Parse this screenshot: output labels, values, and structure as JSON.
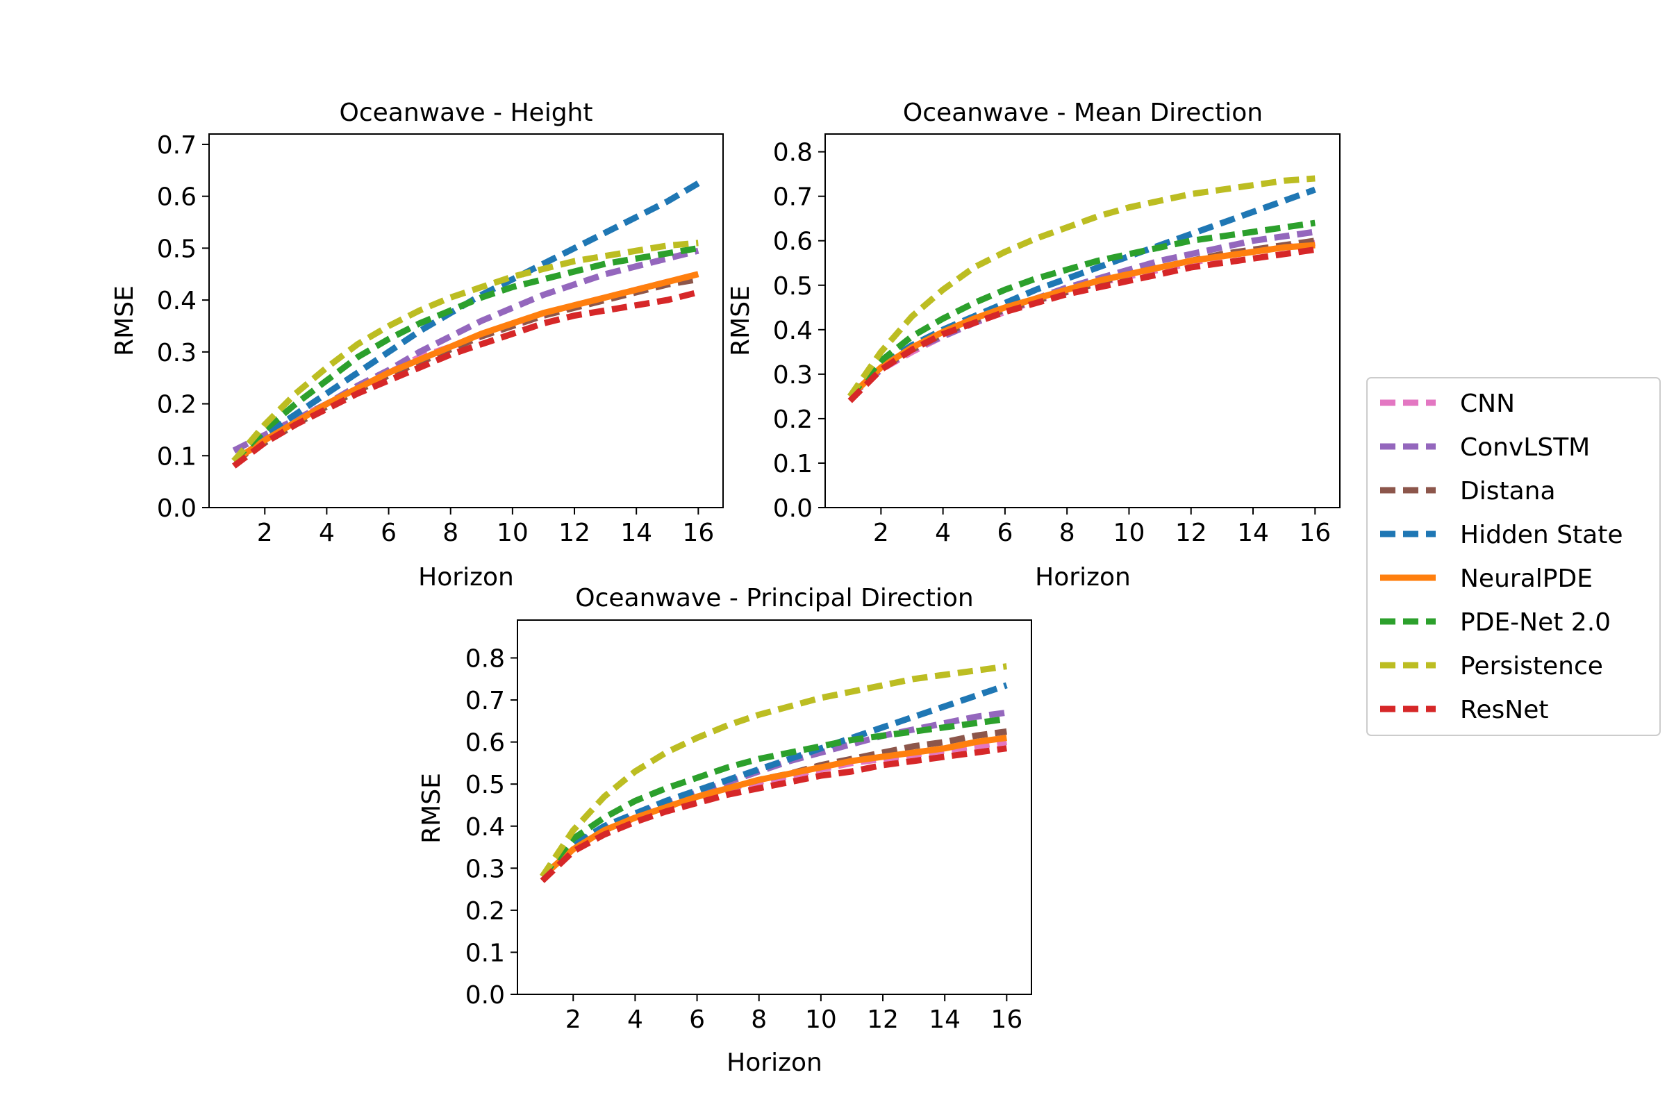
{
  "legend": {
    "placement": "center-right",
    "entries": [
      "CNN",
      "ConvLSTM",
      "Distana",
      "Hidden State",
      "NeuralPDE",
      "PDE-Net 2.0",
      "Persistence",
      "ResNet"
    ]
  },
  "styles": {
    "CNN": {
      "color": "#e377c2",
      "dash": "dashed"
    },
    "ConvLSTM": {
      "color": "#9467bd",
      "dash": "dashed"
    },
    "Distana": {
      "color": "#8c564b",
      "dash": "dashed"
    },
    "Hidden State": {
      "color": "#1f77b4",
      "dash": "dashed"
    },
    "NeuralPDE": {
      "color": "#ff7f0e",
      "dash": "solid"
    },
    "PDE-Net 2.0": {
      "color": "#2ca02c",
      "dash": "dashed"
    },
    "Persistence": {
      "color": "#bcbd22",
      "dash": "dashed"
    },
    "ResNet": {
      "color": "#d62728",
      "dash": "dashed"
    }
  },
  "chart_data": [
    {
      "type": "line",
      "title": "Oceanwave - Height",
      "xlabel": "Horizon",
      "ylabel": "RMSE",
      "xlim": [
        0.2,
        16.8
      ],
      "ylim": [
        0,
        0.72
      ],
      "xticks": [
        2,
        4,
        6,
        8,
        10,
        12,
        14,
        16
      ],
      "yticks": [
        0.0,
        0.1,
        0.2,
        0.3,
        0.4,
        0.5,
        0.6,
        0.7
      ],
      "grid": false,
      "x": [
        1,
        2,
        3,
        4,
        5,
        6,
        7,
        8,
        9,
        10,
        11,
        12,
        13,
        14,
        15,
        16
      ],
      "series": [
        {
          "name": "CNN",
          "values": [
            0.09,
            0.13,
            0.17,
            0.2,
            0.23,
            0.26,
            0.29,
            0.31,
            0.33,
            0.35,
            0.37,
            0.39,
            0.405,
            0.42,
            0.435,
            0.45
          ]
        },
        {
          "name": "ConvLSTM",
          "values": [
            0.11,
            0.14,
            0.17,
            0.2,
            0.235,
            0.265,
            0.3,
            0.33,
            0.36,
            0.385,
            0.41,
            0.43,
            0.45,
            0.465,
            0.48,
            0.495
          ]
        },
        {
          "name": "Distana",
          "values": [
            0.09,
            0.125,
            0.16,
            0.195,
            0.225,
            0.255,
            0.28,
            0.305,
            0.33,
            0.35,
            0.37,
            0.385,
            0.4,
            0.415,
            0.43,
            0.44
          ]
        },
        {
          "name": "Hidden State",
          "values": [
            0.09,
            0.14,
            0.18,
            0.22,
            0.26,
            0.3,
            0.34,
            0.375,
            0.41,
            0.44,
            0.47,
            0.5,
            0.53,
            0.56,
            0.59,
            0.625
          ]
        },
        {
          "name": "NeuralPDE",
          "values": [
            0.09,
            0.13,
            0.165,
            0.2,
            0.23,
            0.26,
            0.285,
            0.31,
            0.335,
            0.355,
            0.375,
            0.39,
            0.405,
            0.42,
            0.435,
            0.45
          ]
        },
        {
          "name": "PDE-Net 2.0",
          "values": [
            0.09,
            0.15,
            0.2,
            0.245,
            0.29,
            0.325,
            0.355,
            0.38,
            0.405,
            0.425,
            0.44,
            0.455,
            0.47,
            0.48,
            0.49,
            0.5
          ]
        },
        {
          "name": "Persistence",
          "values": [
            0.09,
            0.16,
            0.22,
            0.27,
            0.315,
            0.35,
            0.38,
            0.405,
            0.425,
            0.445,
            0.46,
            0.475,
            0.485,
            0.495,
            0.505,
            0.51
          ]
        },
        {
          "name": "ResNet",
          "values": [
            0.08,
            0.125,
            0.16,
            0.19,
            0.22,
            0.245,
            0.27,
            0.295,
            0.315,
            0.335,
            0.355,
            0.37,
            0.38,
            0.39,
            0.4,
            0.415
          ]
        }
      ]
    },
    {
      "type": "line",
      "title": "Oceanwave - Mean Direction",
      "xlabel": "Horizon",
      "ylabel": "RMSE",
      "xlim": [
        0.2,
        16.8
      ],
      "ylim": [
        0,
        0.84
      ],
      "xticks": [
        2,
        4,
        6,
        8,
        10,
        12,
        14,
        16
      ],
      "yticks": [
        0.0,
        0.1,
        0.2,
        0.3,
        0.4,
        0.5,
        0.6,
        0.7,
        0.8
      ],
      "grid": false,
      "x": [
        1,
        2,
        3,
        4,
        5,
        6,
        7,
        8,
        9,
        10,
        11,
        12,
        13,
        14,
        15,
        16
      ],
      "series": [
        {
          "name": "CNN",
          "values": [
            0.25,
            0.31,
            0.35,
            0.385,
            0.415,
            0.44,
            0.465,
            0.485,
            0.505,
            0.52,
            0.535,
            0.55,
            0.565,
            0.575,
            0.585,
            0.595
          ]
        },
        {
          "name": "ConvLSTM",
          "values": [
            0.25,
            0.31,
            0.355,
            0.385,
            0.415,
            0.445,
            0.47,
            0.495,
            0.515,
            0.535,
            0.555,
            0.57,
            0.585,
            0.6,
            0.61,
            0.62
          ]
        },
        {
          "name": "Distana",
          "values": [
            0.25,
            0.315,
            0.355,
            0.39,
            0.42,
            0.445,
            0.465,
            0.485,
            0.505,
            0.525,
            0.54,
            0.555,
            0.57,
            0.58,
            0.59,
            0.6
          ]
        },
        {
          "name": "Hidden State",
          "values": [
            0.25,
            0.32,
            0.365,
            0.4,
            0.43,
            0.46,
            0.49,
            0.515,
            0.54,
            0.565,
            0.59,
            0.615,
            0.64,
            0.665,
            0.69,
            0.715
          ]
        },
        {
          "name": "NeuralPDE",
          "values": [
            0.25,
            0.315,
            0.36,
            0.395,
            0.425,
            0.45,
            0.47,
            0.49,
            0.51,
            0.525,
            0.54,
            0.555,
            0.565,
            0.575,
            0.585,
            0.59
          ]
        },
        {
          "name": "PDE-Net 2.0",
          "values": [
            0.25,
            0.33,
            0.385,
            0.425,
            0.46,
            0.49,
            0.515,
            0.535,
            0.555,
            0.57,
            0.585,
            0.6,
            0.61,
            0.62,
            0.63,
            0.64
          ]
        },
        {
          "name": "Persistence",
          "values": [
            0.25,
            0.35,
            0.43,
            0.49,
            0.54,
            0.575,
            0.605,
            0.63,
            0.655,
            0.675,
            0.69,
            0.705,
            0.715,
            0.725,
            0.735,
            0.74
          ]
        },
        {
          "name": "ResNet",
          "values": [
            0.24,
            0.31,
            0.355,
            0.39,
            0.415,
            0.44,
            0.46,
            0.48,
            0.495,
            0.51,
            0.525,
            0.54,
            0.55,
            0.56,
            0.57,
            0.58
          ]
        }
      ]
    },
    {
      "type": "line",
      "title": "Oceanwave - Principal Direction",
      "xlabel": "Horizon",
      "ylabel": "RMSE",
      "xlim": [
        0.2,
        16.8
      ],
      "ylim": [
        0,
        0.89
      ],
      "xticks": [
        2,
        4,
        6,
        8,
        10,
        12,
        14,
        16
      ],
      "yticks": [
        0.0,
        0.1,
        0.2,
        0.3,
        0.4,
        0.5,
        0.6,
        0.7,
        0.8
      ],
      "grid": false,
      "x": [
        1,
        2,
        3,
        4,
        5,
        6,
        7,
        8,
        9,
        10,
        11,
        12,
        13,
        14,
        15,
        16
      ],
      "series": [
        {
          "name": "CNN",
          "values": [
            0.28,
            0.345,
            0.39,
            0.42,
            0.445,
            0.47,
            0.49,
            0.505,
            0.52,
            0.535,
            0.55,
            0.56,
            0.57,
            0.58,
            0.59,
            0.6
          ]
        },
        {
          "name": "ConvLSTM",
          "values": [
            0.28,
            0.35,
            0.395,
            0.425,
            0.455,
            0.48,
            0.505,
            0.53,
            0.555,
            0.575,
            0.595,
            0.615,
            0.63,
            0.645,
            0.66,
            0.67
          ]
        },
        {
          "name": "Distana",
          "values": [
            0.28,
            0.345,
            0.39,
            0.42,
            0.445,
            0.47,
            0.49,
            0.51,
            0.525,
            0.545,
            0.56,
            0.575,
            0.59,
            0.6,
            0.615,
            0.625
          ]
        },
        {
          "name": "Hidden State",
          "values": [
            0.28,
            0.355,
            0.4,
            0.43,
            0.46,
            0.485,
            0.51,
            0.535,
            0.56,
            0.585,
            0.61,
            0.635,
            0.66,
            0.685,
            0.71,
            0.735
          ]
        },
        {
          "name": "NeuralPDE",
          "values": [
            0.28,
            0.345,
            0.39,
            0.42,
            0.445,
            0.47,
            0.49,
            0.51,
            0.525,
            0.54,
            0.555,
            0.565,
            0.575,
            0.585,
            0.6,
            0.61
          ]
        },
        {
          "name": "PDE-Net 2.0",
          "values": [
            0.28,
            0.37,
            0.42,
            0.46,
            0.49,
            0.515,
            0.54,
            0.56,
            0.575,
            0.59,
            0.605,
            0.615,
            0.625,
            0.635,
            0.645,
            0.655
          ]
        },
        {
          "name": "Persistence",
          "values": [
            0.28,
            0.39,
            0.47,
            0.53,
            0.575,
            0.61,
            0.64,
            0.665,
            0.685,
            0.705,
            0.72,
            0.735,
            0.75,
            0.76,
            0.77,
            0.78
          ]
        },
        {
          "name": "ResNet",
          "values": [
            0.27,
            0.34,
            0.38,
            0.41,
            0.435,
            0.455,
            0.475,
            0.49,
            0.505,
            0.52,
            0.53,
            0.545,
            0.555,
            0.565,
            0.575,
            0.585
          ]
        }
      ]
    }
  ]
}
